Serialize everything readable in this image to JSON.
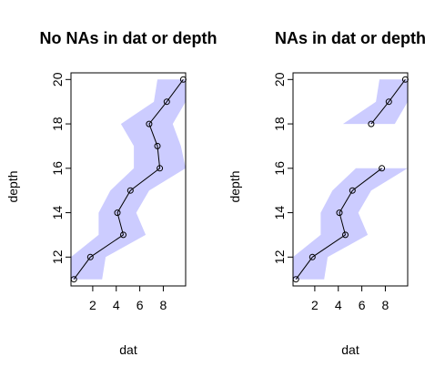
{
  "chart_data": [
    {
      "type": "line",
      "title": "No NAs in dat or depth",
      "xlabel": "dat",
      "ylabel": "depth",
      "xlim": [
        0.15,
        9.9
      ],
      "ylim": [
        10.7,
        20.3
      ],
      "xticks": [
        2,
        4,
        6,
        8
      ],
      "yticks": [
        12,
        14,
        16,
        18,
        20
      ],
      "band_color": "#ccccff",
      "line_color": "#000000",
      "series": [
        {
          "x": [
            0.4,
            1.8,
            4.6,
            4.1,
            5.2,
            7.7,
            7.5,
            6.8,
            8.3,
            9.7
          ],
          "y": [
            11,
            12,
            13,
            14,
            15,
            16,
            17,
            18,
            19,
            20
          ],
          "lower": [
            0.15,
            0.15,
            2.5,
            2.5,
            3.5,
            5.5,
            5.5,
            4.4,
            7.2,
            7.5
          ],
          "upper": [
            2.8,
            3.1,
            6.5,
            5.7,
            6.8,
            9.9,
            9.5,
            8.8,
            9.9,
            9.9
          ]
        }
      ]
    },
    {
      "type": "line",
      "title": "NAs in dat or depth",
      "xlabel": "dat",
      "ylabel": "depth",
      "xlim": [
        0.15,
        9.9
      ],
      "ylim": [
        10.7,
        20.3
      ],
      "xticks": [
        2,
        4,
        6,
        8
      ],
      "yticks": [
        12,
        14,
        16,
        18,
        20
      ],
      "band_color": "#ccccff",
      "line_color": "#000000",
      "series": [
        {
          "x": [
            0.4,
            1.8,
            4.6,
            4.1,
            5.2,
            7.7
          ],
          "y": [
            11,
            12,
            13,
            14,
            15,
            16
          ],
          "lower": [
            0.15,
            0.15,
            2.5,
            2.5,
            3.5,
            5.5
          ],
          "upper": [
            2.8,
            3.1,
            6.5,
            5.7,
            6.8,
            9.9
          ]
        },
        {
          "x": [
            6.8,
            8.3,
            9.7
          ],
          "y": [
            18,
            19,
            20
          ],
          "lower": [
            4.4,
            7.2,
            7.5
          ],
          "upper": [
            8.8,
            9.9,
            9.9
          ]
        }
      ]
    }
  ]
}
